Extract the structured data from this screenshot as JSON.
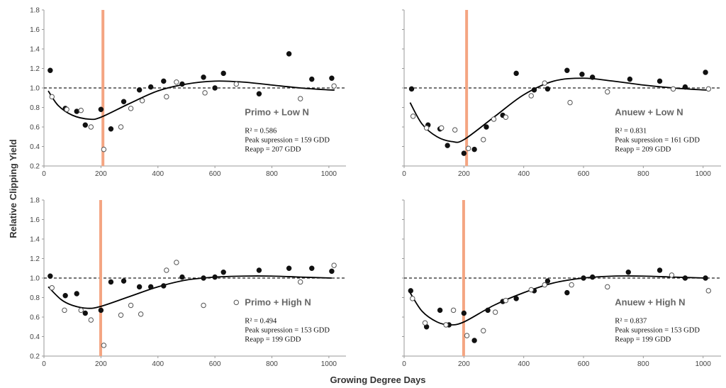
{
  "figure": {
    "ylabel": "Relative Clipping Yield",
    "xlabel": "Growing Degree Days"
  },
  "chart_data": [
    {
      "type": "scatter",
      "title": "Primo + Low N",
      "stats": [
        "R² = 0.586",
        "Peak supression = 159 GDD",
        "Reapp = 207 GDD"
      ],
      "xlim": [
        0,
        1060
      ],
      "ylim": [
        0.2,
        1.8
      ],
      "xticks": [
        "0",
        "200",
        "400",
        "600",
        "800",
        "1000"
      ],
      "yticks": [
        "0.2",
        "0.4",
        "0.6",
        "0.8",
        "1.0",
        "1.2",
        "1.4",
        "1.6",
        "1.8"
      ],
      "reference_line": 1.0,
      "reapp_gdd": 207,
      "series": [
        {
          "marker": "filled",
          "points": [
            [
              22,
              1.18
            ],
            [
              75,
              0.79
            ],
            [
              115,
              0.76
            ],
            [
              145,
              0.62
            ],
            [
              200,
              0.78
            ],
            [
              235,
              0.58
            ],
            [
              280,
              0.86
            ],
            [
              335,
              0.98
            ],
            [
              375,
              1.01
            ],
            [
              420,
              1.07
            ],
            [
              485,
              1.04
            ],
            [
              560,
              1.11
            ],
            [
              600,
              1.0
            ],
            [
              630,
              1.15
            ],
            [
              755,
              0.94
            ],
            [
              860,
              1.35
            ],
            [
              940,
              1.09
            ],
            [
              1010,
              1.1
            ]
          ]
        },
        {
          "marker": "open",
          "points": [
            [
              28,
              0.91
            ],
            [
              80,
              0.78
            ],
            [
              130,
              0.77
            ],
            [
              165,
              0.6
            ],
            [
              210,
              0.37
            ],
            [
              270,
              0.6
            ],
            [
              305,
              0.79
            ],
            [
              345,
              0.87
            ],
            [
              430,
              0.91
            ],
            [
              465,
              1.06
            ],
            [
              565,
              0.95
            ],
            [
              675,
              1.04
            ],
            [
              900,
              0.89
            ],
            [
              1018,
              1.02
            ]
          ]
        }
      ],
      "fit_curve": [
        [
          15,
          0.97
        ],
        [
          50,
          0.82
        ],
        [
          100,
          0.72
        ],
        [
          159,
          0.68
        ],
        [
          200,
          0.7
        ],
        [
          300,
          0.84
        ],
        [
          400,
          0.97
        ],
        [
          500,
          1.04
        ],
        [
          600,
          1.07
        ],
        [
          700,
          1.06
        ],
        [
          800,
          1.03
        ],
        [
          900,
          1.0
        ],
        [
          1000,
          0.98
        ],
        [
          1020,
          0.98
        ]
      ]
    },
    {
      "type": "scatter",
      "title": "Anuew + Low N",
      "stats": [
        "R² = 0.831",
        "Peak supression = 161 GDD",
        "Reapp = 209 GDD"
      ],
      "xlim": [
        0,
        1060
      ],
      "ylim": [
        0.2,
        1.8
      ],
      "xticks": [
        "0",
        "200",
        "400",
        "600",
        "800",
        "1000"
      ],
      "yticks": [],
      "reference_line": 1.0,
      "reapp_gdd": 209,
      "series": [
        {
          "marker": "filled",
          "points": [
            [
              25,
              0.99
            ],
            [
              80,
              0.62
            ],
            [
              120,
              0.58
            ],
            [
              145,
              0.41
            ],
            [
              200,
              0.33
            ],
            [
              235,
              0.37
            ],
            [
              275,
              0.6
            ],
            [
              330,
              0.72
            ],
            [
              375,
              1.15
            ],
            [
              435,
              0.98
            ],
            [
              480,
              0.99
            ],
            [
              545,
              1.18
            ],
            [
              595,
              1.14
            ],
            [
              630,
              1.11
            ],
            [
              755,
              1.09
            ],
            [
              855,
              1.07
            ],
            [
              940,
              1.01
            ],
            [
              1008,
              1.16
            ]
          ]
        },
        {
          "marker": "open",
          "points": [
            [
              30,
              0.71
            ],
            [
              75,
              0.59
            ],
            [
              125,
              0.59
            ],
            [
              170,
              0.57
            ],
            [
              215,
              0.38
            ],
            [
              265,
              0.47
            ],
            [
              300,
              0.68
            ],
            [
              340,
              0.7
            ],
            [
              425,
              0.92
            ],
            [
              470,
              1.05
            ],
            [
              555,
              0.85
            ],
            [
              680,
              0.96
            ],
            [
              900,
              0.99
            ],
            [
              1018,
              0.99
            ]
          ]
        }
      ],
      "fit_curve": [
        [
          20,
          0.85
        ],
        [
          60,
          0.63
        ],
        [
          110,
          0.5
        ],
        [
          161,
          0.45
        ],
        [
          200,
          0.47
        ],
        [
          300,
          0.7
        ],
        [
          400,
          0.93
        ],
        [
          500,
          1.07
        ],
        [
          600,
          1.1
        ],
        [
          700,
          1.07
        ],
        [
          800,
          1.03
        ],
        [
          900,
          1.0
        ],
        [
          1000,
          0.98
        ],
        [
          1020,
          0.98
        ]
      ]
    },
    {
      "type": "scatter",
      "title": "Primo + High N",
      "stats": [
        "R² = 0.494",
        "Peak supression = 153 GDD",
        "Reapp = 199 GDD"
      ],
      "xlim": [
        0,
        1060
      ],
      "ylim": [
        0.2,
        1.8
      ],
      "xticks": [
        "0",
        "200",
        "400",
        "600",
        "800",
        "1000"
      ],
      "yticks": [
        "0.2",
        "0.4",
        "0.6",
        "0.8",
        "1.0",
        "1.2",
        "1.4",
        "1.6",
        "1.8"
      ],
      "reference_line": 1.0,
      "reapp_gdd": 199,
      "series": [
        {
          "marker": "filled",
          "points": [
            [
              22,
              1.02
            ],
            [
              75,
              0.82
            ],
            [
              115,
              0.84
            ],
            [
              145,
              0.64
            ],
            [
              200,
              0.67
            ],
            [
              235,
              0.96
            ],
            [
              280,
              0.97
            ],
            [
              335,
              0.91
            ],
            [
              375,
              0.91
            ],
            [
              420,
              0.92
            ],
            [
              485,
              1.01
            ],
            [
              560,
              1.0
            ],
            [
              600,
              1.01
            ],
            [
              630,
              1.06
            ],
            [
              755,
              1.08
            ],
            [
              860,
              1.1
            ],
            [
              940,
              1.1
            ],
            [
              1010,
              1.07
            ]
          ]
        },
        {
          "marker": "open",
          "points": [
            [
              28,
              0.9
            ],
            [
              72,
              0.67
            ],
            [
              130,
              0.67
            ],
            [
              165,
              0.57
            ],
            [
              210,
              0.31
            ],
            [
              270,
              0.62
            ],
            [
              305,
              0.72
            ],
            [
              340,
              0.63
            ],
            [
              430,
              1.08
            ],
            [
              465,
              1.16
            ],
            [
              560,
              0.72
            ],
            [
              675,
              0.75
            ],
            [
              900,
              0.96
            ],
            [
              1018,
              1.13
            ]
          ]
        }
      ],
      "fit_curve": [
        [
          15,
          0.91
        ],
        [
          60,
          0.78
        ],
        [
          100,
          0.72
        ],
        [
          153,
          0.69
        ],
        [
          200,
          0.71
        ],
        [
          300,
          0.81
        ],
        [
          400,
          0.91
        ],
        [
          500,
          0.98
        ],
        [
          600,
          1.01
        ],
        [
          700,
          1.02
        ],
        [
          800,
          1.02
        ],
        [
          900,
          1.01
        ],
        [
          1010,
          1.0
        ]
      ]
    },
    {
      "type": "scatter",
      "title": "Anuew + High N",
      "stats": [
        "R² = 0.837",
        "Peak supression = 153 GDD",
        "Reapp = 199 GDD"
      ],
      "xlim": [
        0,
        1060
      ],
      "ylim": [
        0.2,
        1.8
      ],
      "xticks": [
        "0",
        "200",
        "400",
        "600",
        "800",
        "1000"
      ],
      "yticks": [],
      "reference_line": 1.0,
      "reapp_gdd": 199,
      "series": [
        {
          "marker": "filled",
          "points": [
            [
              22,
              0.87
            ],
            [
              75,
              0.5
            ],
            [
              120,
              0.67
            ],
            [
              150,
              0.52
            ],
            [
              200,
              0.64
            ],
            [
              235,
              0.36
            ],
            [
              280,
              0.67
            ],
            [
              330,
              0.76
            ],
            [
              375,
              0.79
            ],
            [
              435,
              0.87
            ],
            [
              480,
              0.97
            ],
            [
              545,
              0.85
            ],
            [
              600,
              1.0
            ],
            [
              630,
              1.01
            ],
            [
              750,
              1.06
            ],
            [
              855,
              1.08
            ],
            [
              940,
              1.0
            ],
            [
              1008,
              1.0
            ]
          ]
        },
        {
          "marker": "open",
          "points": [
            [
              28,
              0.79
            ],
            [
              70,
              0.54
            ],
            [
              140,
              0.52
            ],
            [
              165,
              0.67
            ],
            [
              210,
              0.41
            ],
            [
              265,
              0.46
            ],
            [
              305,
              0.65
            ],
            [
              340,
              0.77
            ],
            [
              425,
              0.88
            ],
            [
              470,
              0.93
            ],
            [
              560,
              0.93
            ],
            [
              680,
              0.91
            ],
            [
              895,
              1.03
            ],
            [
              1018,
              0.87
            ]
          ]
        }
      ],
      "fit_curve": [
        [
          20,
          0.85
        ],
        [
          60,
          0.66
        ],
        [
          110,
          0.55
        ],
        [
          153,
          0.52
        ],
        [
          200,
          0.55
        ],
        [
          300,
          0.72
        ],
        [
          400,
          0.85
        ],
        [
          500,
          0.95
        ],
        [
          600,
          1.0
        ],
        [
          700,
          1.02
        ],
        [
          800,
          1.02
        ],
        [
          900,
          1.01
        ],
        [
          1010,
          1.0
        ]
      ]
    }
  ],
  "colors": {
    "reapp_line": "#f4a582",
    "points": "#111111",
    "curve": "#000000",
    "reference_line": "#222222",
    "axis": "#999999"
  }
}
